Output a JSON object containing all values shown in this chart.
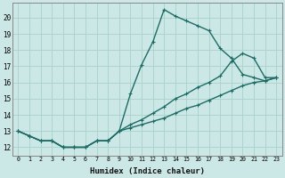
{
  "xlabel": "Humidex (Indice chaleur)",
  "ylabel": "",
  "bg_color": "#cce8e6",
  "line_color": "#1e6b65",
  "grid_color": "#aed4d0",
  "xlim": [
    -0.5,
    23.5
  ],
  "ylim": [
    11.5,
    20.9
  ],
  "xticks": [
    0,
    1,
    2,
    3,
    4,
    5,
    6,
    7,
    8,
    9,
    10,
    11,
    12,
    13,
    14,
    15,
    16,
    17,
    18,
    19,
    20,
    21,
    22,
    23
  ],
  "yticks": [
    12,
    13,
    14,
    15,
    16,
    17,
    18,
    19,
    20
  ],
  "line1_x": [
    0,
    1,
    2,
    3,
    4,
    5,
    6,
    7,
    8,
    9,
    10,
    11,
    12,
    13,
    14,
    15,
    16,
    17,
    18,
    19,
    20,
    21,
    22,
    23
  ],
  "line1_y": [
    13.0,
    12.7,
    12.4,
    12.4,
    12.0,
    12.0,
    12.0,
    12.4,
    12.4,
    13.0,
    15.3,
    17.1,
    18.5,
    20.5,
    20.1,
    19.8,
    19.5,
    19.2,
    18.1,
    17.5,
    16.5,
    16.3,
    16.1,
    16.3
  ],
  "line2_x": [
    0,
    1,
    2,
    3,
    4,
    5,
    6,
    7,
    8,
    9,
    10,
    11,
    12,
    13,
    14,
    15,
    16,
    17,
    18,
    19,
    20,
    21,
    22,
    23
  ],
  "line2_y": [
    13.0,
    12.7,
    12.4,
    12.4,
    12.0,
    12.0,
    12.0,
    12.4,
    12.4,
    13.0,
    13.4,
    13.7,
    14.1,
    14.5,
    15.0,
    15.3,
    15.7,
    16.0,
    16.4,
    17.3,
    17.8,
    17.5,
    16.3,
    16.3
  ],
  "line3_x": [
    0,
    1,
    2,
    3,
    4,
    5,
    6,
    7,
    8,
    9,
    10,
    11,
    12,
    13,
    14,
    15,
    16,
    17,
    18,
    19,
    20,
    21,
    22,
    23
  ],
  "line3_y": [
    13.0,
    12.7,
    12.4,
    12.4,
    12.0,
    12.0,
    12.0,
    12.4,
    12.4,
    13.0,
    13.2,
    13.4,
    13.6,
    13.8,
    14.1,
    14.4,
    14.6,
    14.9,
    15.2,
    15.5,
    15.8,
    16.0,
    16.1,
    16.3
  ],
  "marker": "+",
  "markersize": 3,
  "linewidth": 1.0
}
